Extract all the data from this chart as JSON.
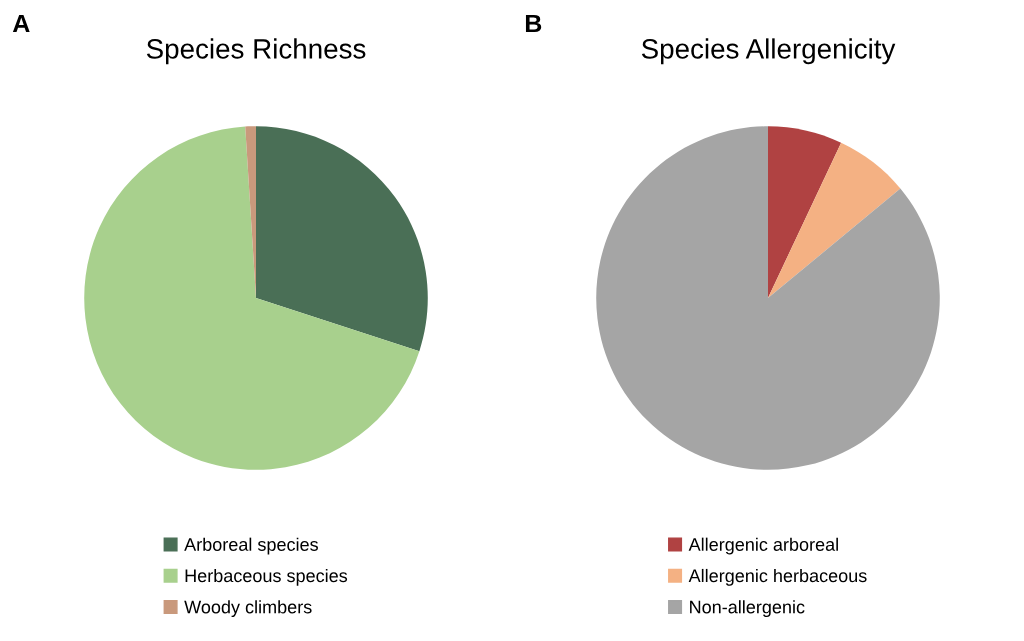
{
  "chart_data": [
    {
      "type": "pie",
      "title": "Species Richness",
      "annotations": [
        "A"
      ],
      "categories": [
        "Arboreal species",
        "Herbaceous species",
        "Woody climbers"
      ],
      "values": [
        30,
        69,
        1
      ],
      "colors": [
        "#4a6f56",
        "#a8d08d",
        "#c9997c"
      ],
      "legend": "bottom"
    },
    {
      "type": "pie",
      "title": "Species Allergenicity",
      "annotations": [
        "B"
      ],
      "categories": [
        "Allergenic arboreal",
        "Allergenic herbaceous",
        "Non-allergenic"
      ],
      "values": [
        7,
        7,
        86
      ],
      "colors": [
        "#b04242",
        "#f4b183",
        "#a5a5a5"
      ],
      "legend": "bottom"
    }
  ]
}
